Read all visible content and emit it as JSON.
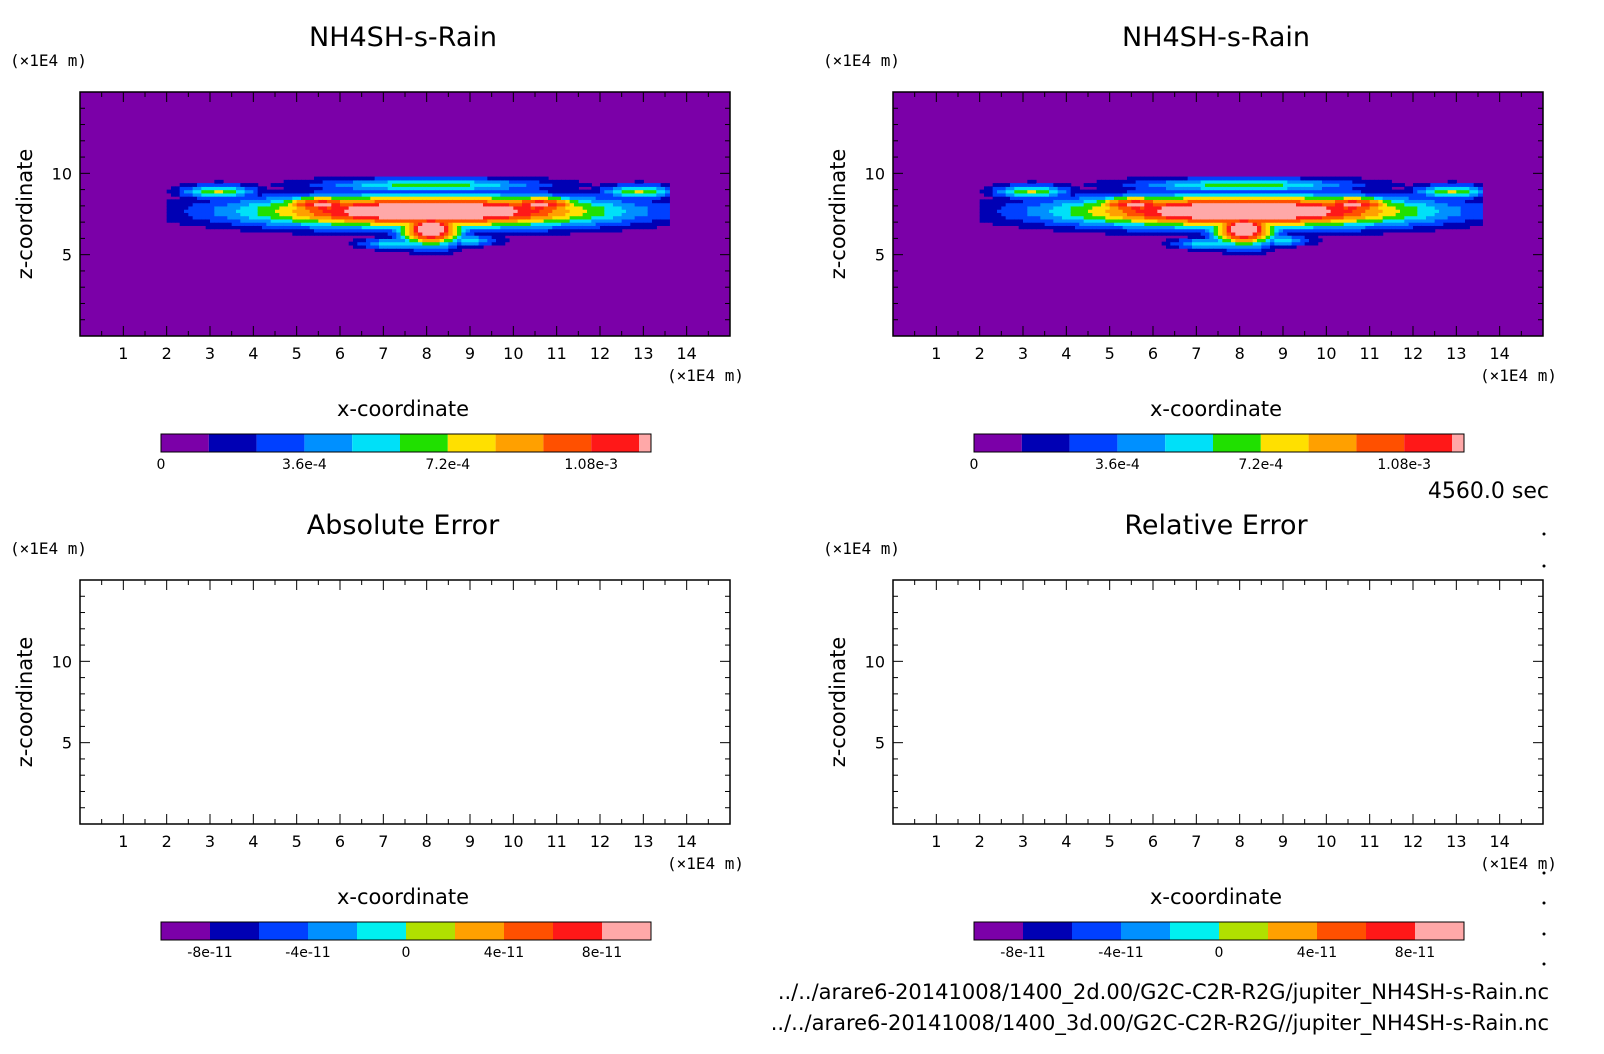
{
  "time_label": "4560.0 sec",
  "files": [
    "../../arare6-20141008/1400_2d.00/G2C-C2R-R2G/jupiter_NH4SH-s-Rain.nc",
    "../../arare6-20141008/1400_3d.00/G2C-C2R-R2G//jupiter_NH4SH-s-Rain.nc"
  ],
  "chart_data": [
    {
      "type": "heatmap",
      "title": "NH4SH-s-Rain",
      "xlabel": "x-coordinate",
      "ylabel": "z-coordinate",
      "x_unit": "(×1E4 m)",
      "y_unit": "(×1E4 m)",
      "xlim": [
        0,
        15
      ],
      "ylim": [
        0,
        15
      ],
      "x_ticks": [
        1,
        2,
        3,
        4,
        5,
        6,
        7,
        8,
        9,
        10,
        11,
        12,
        13,
        14
      ],
      "y_ticks": [
        5,
        10
      ],
      "colorbar": {
        "colors": [
          "#7b00a8",
          "#0000b4",
          "#0040ff",
          "#0090ff",
          "#00e0f8",
          "#20e000",
          "#ffe000",
          "#ffa000",
          "#ff5000",
          "#ff1818",
          "#ffa8a8"
        ],
        "labels": [
          "0",
          "3.6e-4",
          "7.2e-4",
          "1.08e-3"
        ],
        "label_values": [
          0,
          0.00036,
          0.00072,
          0.00108
        ],
        "range": [
          0,
          0.0012
        ]
      },
      "cloud_region": {
        "x_range": [
          2.3,
          13.3
        ],
        "z_range": [
          5.0,
          10.0
        ],
        "max_value": 0.0012
      }
    },
    {
      "type": "heatmap",
      "title": "NH4SH-s-Rain",
      "xlabel": "x-coordinate",
      "ylabel": "z-coordinate",
      "x_unit": "(×1E4 m)",
      "y_unit": "(×1E4 m)",
      "xlim": [
        0,
        15
      ],
      "ylim": [
        0,
        15
      ],
      "x_ticks": [
        1,
        2,
        3,
        4,
        5,
        6,
        7,
        8,
        9,
        10,
        11,
        12,
        13,
        14
      ],
      "y_ticks": [
        5,
        10
      ],
      "colorbar": {
        "colors": [
          "#7b00a8",
          "#0000b4",
          "#0040ff",
          "#0090ff",
          "#00e0f8",
          "#20e000",
          "#ffe000",
          "#ffa000",
          "#ff5000",
          "#ff1818",
          "#ffa8a8"
        ],
        "labels": [
          "0",
          "3.6e-4",
          "7.2e-4",
          "1.08e-3"
        ],
        "label_values": [
          0,
          0.00036,
          0.00072,
          0.00108
        ],
        "range": [
          0,
          0.0012
        ]
      },
      "cloud_region": {
        "x_range": [
          2.3,
          13.3
        ],
        "z_range": [
          5.0,
          10.0
        ],
        "max_value": 0.0012
      }
    },
    {
      "type": "heatmap",
      "title": "Absolute Error",
      "xlabel": "x-coordinate",
      "ylabel": "z-coordinate",
      "x_unit": "(×1E4 m)",
      "y_unit": "(×1E4 m)",
      "xlim": [
        0,
        15
      ],
      "ylim": [
        0,
        15
      ],
      "x_ticks": [
        1,
        2,
        3,
        4,
        5,
        6,
        7,
        8,
        9,
        10,
        11,
        12,
        13,
        14
      ],
      "y_ticks": [
        5,
        10
      ],
      "empty": true,
      "colorbar": {
        "colors": [
          "#7b00a8",
          "#0000b4",
          "#0040ff",
          "#0090ff",
          "#00f0f0",
          "#b0e000",
          "#ffa000",
          "#ff5000",
          "#ff1818",
          "#ffa8a8"
        ],
        "labels": [
          "-8e-11",
          "-4e-11",
          "0",
          "4e-11",
          "8e-11"
        ],
        "label_values": [
          -8e-11,
          -4e-11,
          0,
          4e-11,
          8e-11
        ],
        "range": [
          -1e-10,
          1e-10
        ]
      }
    },
    {
      "type": "heatmap",
      "title": "Relative Error",
      "xlabel": "x-coordinate",
      "ylabel": "z-coordinate",
      "x_unit": "(×1E4 m)",
      "y_unit": "(×1E4 m)",
      "xlim": [
        0,
        15
      ],
      "ylim": [
        0,
        15
      ],
      "x_ticks": [
        1,
        2,
        3,
        4,
        5,
        6,
        7,
        8,
        9,
        10,
        11,
        12,
        13,
        14
      ],
      "y_ticks": [
        5,
        10
      ],
      "empty": true,
      "colorbar": {
        "colors": [
          "#7b00a8",
          "#0000b4",
          "#0040ff",
          "#0090ff",
          "#00f0f0",
          "#b0e000",
          "#ffa000",
          "#ff5000",
          "#ff1818",
          "#ffa8a8"
        ],
        "labels": [
          "-8e-11",
          "-4e-11",
          "0",
          "4e-11",
          "8e-11"
        ],
        "label_values": [
          -8e-11,
          -4e-11,
          0,
          4e-11,
          8e-11
        ],
        "range": [
          -1e-10,
          1e-10
        ]
      }
    }
  ]
}
